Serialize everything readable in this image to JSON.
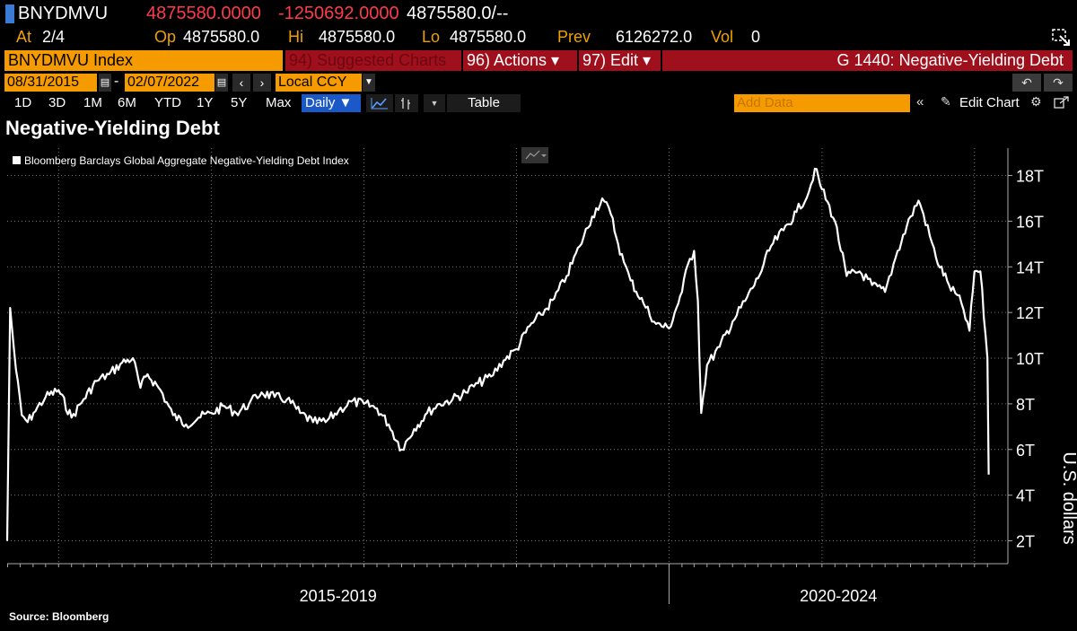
{
  "quote": {
    "ticker": "BNYDMVU",
    "last": "4875580.0000",
    "change": "-1250692.0000",
    "bid_ask": "4875580.0/--",
    "at_label": "At",
    "at_value": "2/4",
    "op_label": "Op",
    "op_value": "4875580.0",
    "hi_label": "Hi",
    "hi_value": "4875580.0",
    "lo_label": "Lo",
    "lo_value": "4875580.0",
    "prev_label": "Prev",
    "prev_value": "6126272.0",
    "vol_label": "Vol",
    "vol_value": "0"
  },
  "command": {
    "security": "BNYDMVU Index",
    "suggested": "94) Suggested Charts",
    "actions": "96) Actions ▾",
    "edit": "97) Edit ▾",
    "page_title": "G 1440: Negative-Yielding Debt"
  },
  "range": {
    "start_date": "08/31/2015",
    "dash": "-",
    "end_date": "02/07/2022",
    "currency": "Local CCY"
  },
  "periods": [
    "1D",
    "3D",
    "1M",
    "6M",
    "YTD",
    "1Y",
    "5Y",
    "Max"
  ],
  "frequency": "Daily ▼",
  "table_label": "Table",
  "add_data_placeholder": "Add Data",
  "edit_chart_label": "Edit Chart",
  "colors": {
    "accent": "#f59b00",
    "red_bar": "#a0101c",
    "negative": "#ff3b4a",
    "blue": "#1b58c8",
    "line": "#ffffff"
  },
  "chart_data": {
    "type": "line",
    "title": "Negative-Yielding Debt",
    "ylabel": "U.S. dollars",
    "ylim": [
      1,
      19.2
    ],
    "yticks": [
      2,
      4,
      6,
      8,
      10,
      12,
      14,
      16,
      18
    ],
    "ytick_labels": [
      "2T",
      "4T",
      "6T",
      "8T",
      "10T",
      "12T",
      "14T",
      "16T",
      "18T"
    ],
    "x_periods": [
      "2015-2019",
      "2020-2024"
    ],
    "legend": "Bloomberg Barclays Global Aggregate Negative-Yielding Debt Index",
    "source": "Source: Bloomberg",
    "series": [
      {
        "name": "Bloomberg Barclays Global Aggregate Negative-Yielding Debt Index",
        "x": [
          "2015-08-31",
          "2015-09-07",
          "2015-09-21",
          "2015-10-05",
          "2015-10-19",
          "2015-11-02",
          "2015-12-01",
          "2016-01-01",
          "2016-02-01",
          "2016-03-01",
          "2016-04-01",
          "2016-05-01",
          "2016-06-01",
          "2016-06-27",
          "2016-07-15",
          "2016-08-01",
          "2016-09-01",
          "2016-10-01",
          "2016-11-01",
          "2016-12-01",
          "2017-01-01",
          "2017-02-01",
          "2017-03-01",
          "2017-04-01",
          "2017-05-01",
          "2017-06-01",
          "2017-07-01",
          "2017-08-01",
          "2017-09-01",
          "2017-10-01",
          "2017-11-01",
          "2017-12-01",
          "2018-01-01",
          "2018-02-01",
          "2018-03-01",
          "2018-04-01",
          "2018-05-01",
          "2018-06-01",
          "2018-07-01",
          "2018-08-01",
          "2018-09-01",
          "2018-10-01",
          "2018-11-01",
          "2018-12-01",
          "2019-01-01",
          "2019-02-01",
          "2019-03-01",
          "2019-04-01",
          "2019-05-01",
          "2019-06-01",
          "2019-07-01",
          "2019-07-25",
          "2019-08-15",
          "2019-09-01",
          "2019-09-15",
          "2019-10-01",
          "2019-11-01",
          "2019-12-01",
          "2020-01-01",
          "2020-02-01",
          "2020-02-15",
          "2020-03-01",
          "2020-03-10",
          "2020-03-18",
          "2020-04-01",
          "2020-05-01",
          "2020-06-01",
          "2020-07-01",
          "2020-08-01",
          "2020-09-01",
          "2020-10-01",
          "2020-11-01",
          "2020-12-01",
          "2020-12-15",
          "2021-01-01",
          "2021-02-01",
          "2021-03-01",
          "2021-04-01",
          "2021-05-01",
          "2021-06-01",
          "2021-07-01",
          "2021-08-01",
          "2021-08-20",
          "2021-09-01",
          "2021-10-01",
          "2021-11-01",
          "2021-12-01",
          "2021-12-20",
          "2022-01-01",
          "2022-01-15",
          "2022-02-01",
          "2022-02-04"
        ],
        "values": [
          2.0,
          12.2,
          9.5,
          7.5,
          7.2,
          7.6,
          8.3,
          8.6,
          7.4,
          8.2,
          9.0,
          9.3,
          9.8,
          10.0,
          8.7,
          9.3,
          8.6,
          7.5,
          7.1,
          7.4,
          7.6,
          7.9,
          7.6,
          8.0,
          8.5,
          8.3,
          8.2,
          7.6,
          7.2,
          7.2,
          7.7,
          8.1,
          8.0,
          7.8,
          7.1,
          6.0,
          6.9,
          7.6,
          8.0,
          8.2,
          8.5,
          8.9,
          9.2,
          9.9,
          10.4,
          11.4,
          11.9,
          12.6,
          13.6,
          14.9,
          16.2,
          17.0,
          16.3,
          15.0,
          14.2,
          13.4,
          12.4,
          11.5,
          11.3,
          12.9,
          14.1,
          14.7,
          12.5,
          7.6,
          9.7,
          10.5,
          11.6,
          12.5,
          13.5,
          14.9,
          15.6,
          16.4,
          17.3,
          18.3,
          17.4,
          16.0,
          13.6,
          13.8,
          13.2,
          12.9,
          14.7,
          16.2,
          16.9,
          16.3,
          14.4,
          13.2,
          12.4,
          11.2,
          13.8,
          13.8,
          10.0,
          4.9
        ]
      }
    ]
  }
}
